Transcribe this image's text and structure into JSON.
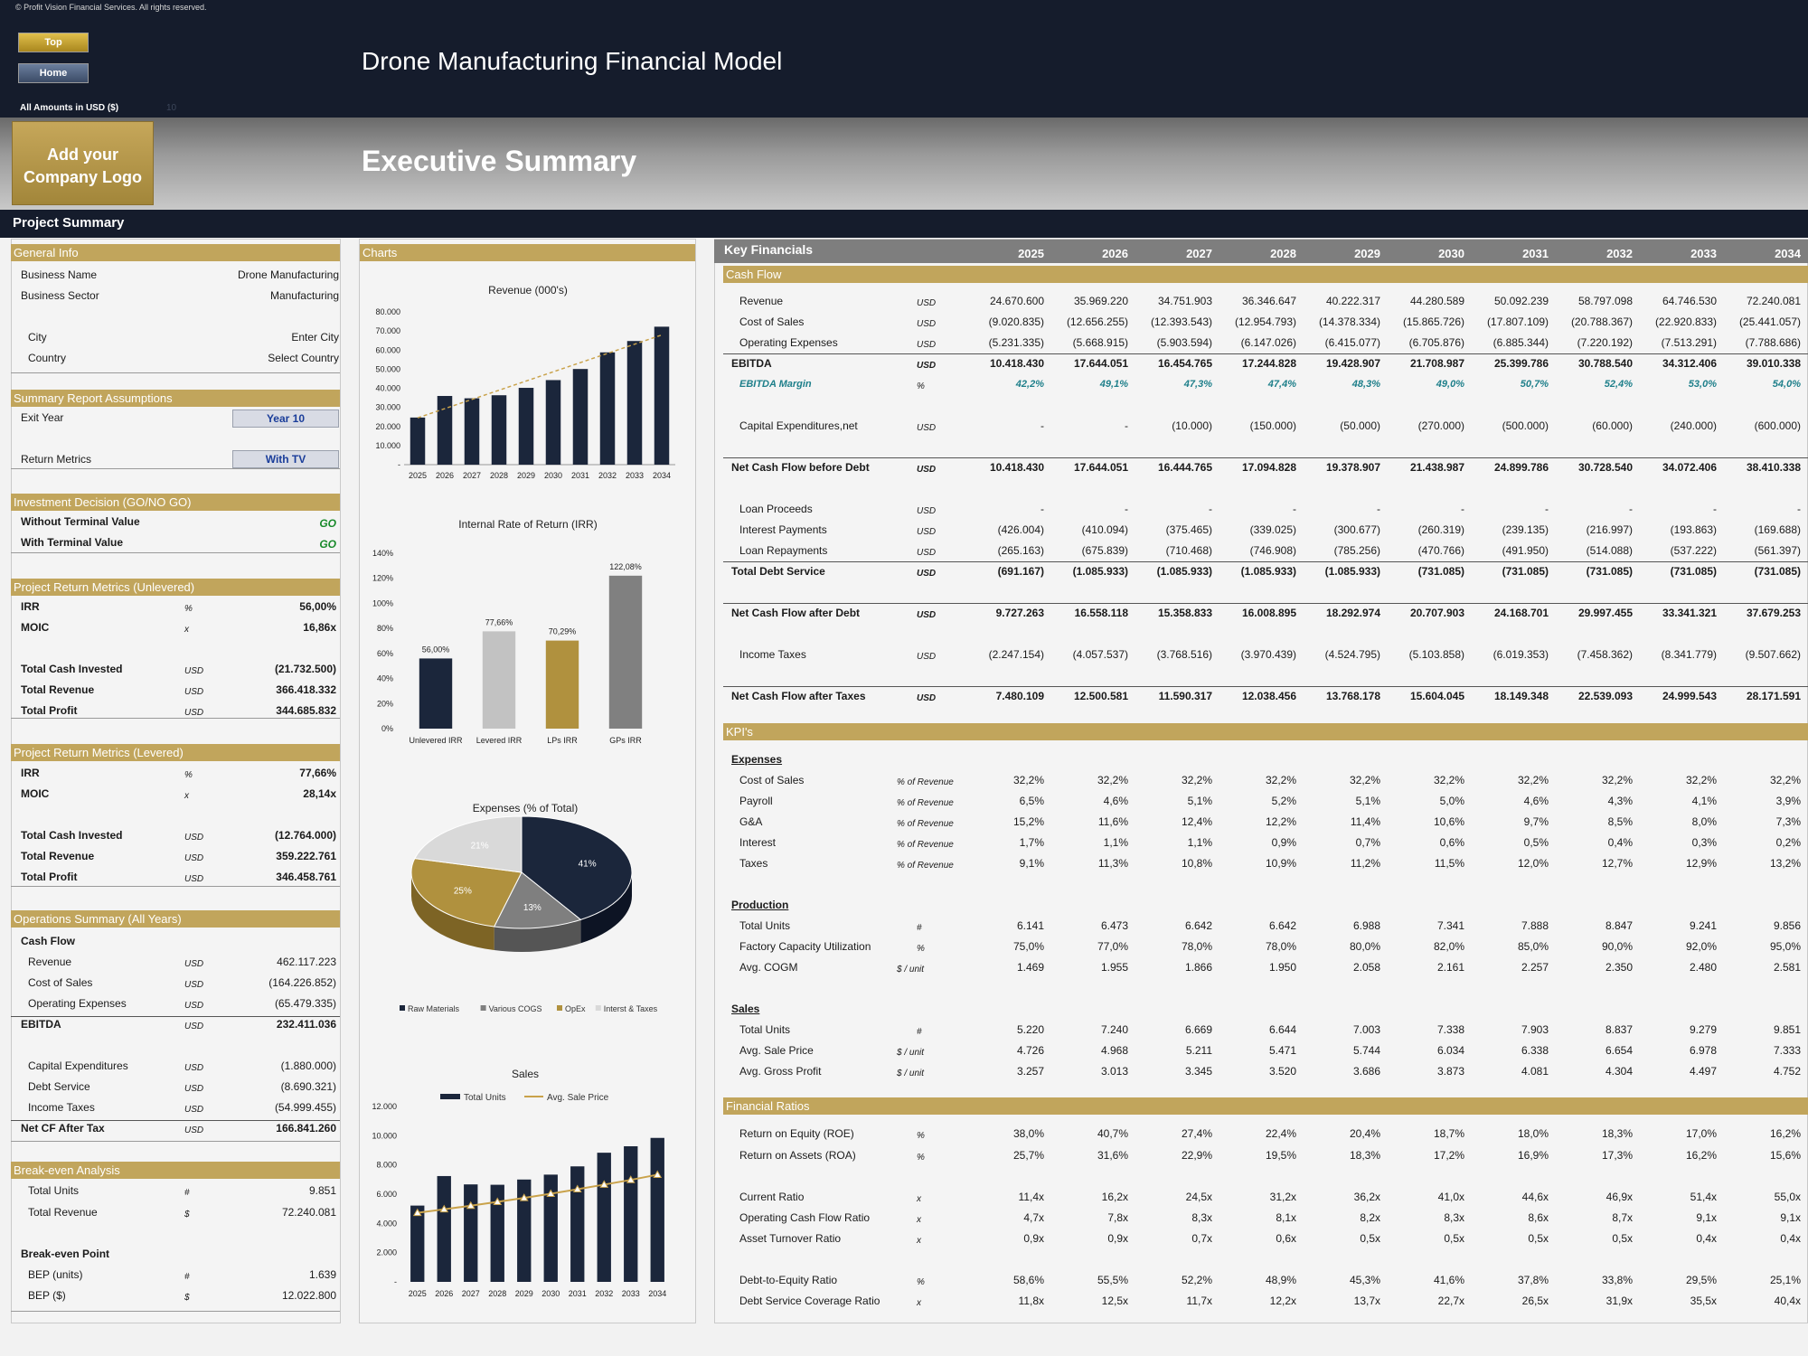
{
  "copyright": "© Profit Vision Financial Services. All rights reserved.",
  "nav": {
    "top": "Top",
    "home": "Home"
  },
  "app_title": "Drone Manufacturing Financial Model",
  "amounts_label": "All Amounts in  USD ($)",
  "amounts_tag": "10",
  "logo_text": "Add your Company Logo",
  "exec_title": "Executive Summary",
  "project_summary": "Project Summary",
  "general_info": {
    "title": "General Info",
    "rows": [
      {
        "label": "Business Name",
        "value": "Drone Manufacturing"
      },
      {
        "label": "Business Sector",
        "value": "Manufacturing"
      },
      {
        "label": "City",
        "value": "Enter City"
      },
      {
        "label": "Country",
        "value": "Select Country"
      }
    ]
  },
  "assumptions": {
    "title": "Summary  Report Assumptions",
    "exit_year_label": "Exit Year",
    "exit_year_value": "Year 10",
    "return_metrics_label": "Return Metrics",
    "return_metrics_value": "With TV"
  },
  "investment": {
    "title": "Investment Decision (GO/NO GO)",
    "rows": [
      {
        "label": "Without Terminal Value",
        "value": "GO"
      },
      {
        "label": "With Terminal Value",
        "value": "GO"
      }
    ]
  },
  "unlevered": {
    "title": "Project Return Metrics (Unlevered)",
    "rows": [
      {
        "label": "IRR",
        "unit": "%",
        "value": "56,00%"
      },
      {
        "label": "MOIC",
        "unit": "x",
        "value": "16,86x"
      },
      {
        "label": "Total Cash Invested",
        "unit": "USD",
        "value": "(21.732.500)"
      },
      {
        "label": "Total Revenue",
        "unit": "USD",
        "value": "366.418.332"
      },
      {
        "label": "Total Profit",
        "unit": "USD",
        "value": "344.685.832"
      }
    ]
  },
  "levered": {
    "title": "Project Return Metrics (Levered)",
    "rows": [
      {
        "label": "IRR",
        "unit": "%",
        "value": "77,66%"
      },
      {
        "label": "MOIC",
        "unit": "x",
        "value": "28,14x"
      },
      {
        "label": "Total Cash Invested",
        "unit": "USD",
        "value": "(12.764.000)"
      },
      {
        "label": "Total Revenue",
        "unit": "USD",
        "value": "359.222.761"
      },
      {
        "label": "Total Profit",
        "unit": "USD",
        "value": "346.458.761"
      }
    ]
  },
  "operations": {
    "title": "Operations Summary (All Years)",
    "subtitle": "Cash Flow",
    "rows": [
      {
        "label": "Revenue",
        "unit": "USD",
        "value": "462.117.223"
      },
      {
        "label": "Cost of Sales",
        "unit": "USD",
        "value": "(164.226.852)"
      },
      {
        "label": "Operating Expenses",
        "unit": "USD",
        "value": "(65.479.335)"
      },
      {
        "label": "EBITDA",
        "unit": "USD",
        "value": "232.411.036"
      },
      {
        "label": "Capital Expenditures",
        "unit": "USD",
        "value": "(1.880.000)"
      },
      {
        "label": "Debt Service",
        "unit": "USD",
        "value": "(8.690.321)"
      },
      {
        "label": "Income Taxes",
        "unit": "USD",
        "value": "(54.999.455)"
      },
      {
        "label": "Net CF After Tax",
        "unit": "USD",
        "value": "166.841.260"
      }
    ]
  },
  "breakeven": {
    "title": "Break-even Analysis",
    "rows": [
      {
        "label": "Total Units",
        "unit": "#",
        "value": "9.851"
      },
      {
        "label": "Total Revenue",
        "unit": "$",
        "value": "72.240.081"
      }
    ],
    "point_title": "Break-even Point",
    "point_rows": [
      {
        "label": "BEP (units)",
        "unit": "#",
        "value": "1.639"
      },
      {
        "label": "BEP ($)",
        "unit": "$",
        "value": "12.022.800"
      }
    ]
  },
  "charts_title": "Charts",
  "chart_data": [
    {
      "type": "bar",
      "title": "Revenue (000's)",
      "categories": [
        "2025",
        "2026",
        "2027",
        "2028",
        "2029",
        "2030",
        "2031",
        "2032",
        "2033",
        "2034"
      ],
      "values": [
        24671,
        35969,
        34752,
        36347,
        40222,
        44281,
        50092,
        58797,
        64747,
        72240
      ],
      "ylim": [
        0,
        80000
      ],
      "yticks": [
        "-",
        "10.000",
        "20.000",
        "30.000",
        "40.000",
        "50.000",
        "60.000",
        "70.000",
        "80.000"
      ],
      "trendline": true,
      "colors": {
        "bar": "#1b263b",
        "trend": "#c9a24a"
      }
    },
    {
      "type": "bar",
      "title": "Internal Rate of Return (IRR)",
      "categories": [
        "Unlevered IRR",
        "Levered IRR",
        "LPs IRR",
        "GPs IRR"
      ],
      "values": [
        56.0,
        77.66,
        70.29,
        122.08
      ],
      "labels": [
        "56,00%",
        "77,66%",
        "70,29%",
        "122,08%"
      ],
      "ylim": [
        0,
        140
      ],
      "yticks": [
        "0%",
        "20%",
        "40%",
        "60%",
        "80%",
        "100%",
        "120%",
        "140%"
      ],
      "colors": [
        "#1b263b",
        "#c2c2c2",
        "#b0913e",
        "#808080"
      ]
    },
    {
      "type": "pie",
      "title": "Expenses (% of Total)",
      "slices": [
        {
          "name": "Raw Materials",
          "value": 41,
          "label": "41%",
          "color": "#1b263b"
        },
        {
          "name": "Various COGS",
          "value": 13,
          "label": "13%",
          "color": "#7f7f7f"
        },
        {
          "name": "OpEx",
          "value": 25,
          "label": "25%",
          "color": "#b0913e"
        },
        {
          "name": "Interst & Taxes",
          "value": 21,
          "label": "21%",
          "color": "#d9d9d9"
        }
      ]
    },
    {
      "type": "bar",
      "title": "Sales",
      "categories": [
        "2025",
        "2026",
        "2027",
        "2028",
        "2029",
        "2030",
        "2031",
        "2032",
        "2033",
        "2034"
      ],
      "series": [
        {
          "name": "Total Units",
          "values": [
            5220,
            7240,
            6669,
            6644,
            7003,
            7338,
            7903,
            8837,
            9279,
            9851
          ]
        },
        {
          "name": "Avg. Sale Price",
          "values": [
            4726,
            4968,
            5211,
            5471,
            5744,
            6034,
            6338,
            6654,
            6978,
            7333
          ]
        }
      ],
      "ylim": [
        0,
        12000
      ],
      "yticks": [
        "-",
        "2.000",
        "4.000",
        "6.000",
        "8.000",
        "10.000",
        "12.000"
      ],
      "colors": {
        "bar": "#1b263b",
        "line": "#c9a24a"
      }
    }
  ],
  "key_financials": {
    "title": "Key Financials",
    "years": [
      "2025",
      "2026",
      "2027",
      "2028",
      "2029",
      "2030",
      "2031",
      "2032",
      "2033",
      "2034"
    ],
    "cashflow_title": "Cash Flow",
    "kpi_title": "KPI's",
    "ratios_title": "Financial Ratios",
    "rows": [
      {
        "label": "Revenue",
        "unit": "USD",
        "values": [
          "24.670.600",
          "35.969.220",
          "34.751.903",
          "36.346.647",
          "40.222.317",
          "44.280.589",
          "50.092.239",
          "58.797.098",
          "64.746.530",
          "72.240.081"
        ],
        "y": 326
      },
      {
        "label": "Cost of Sales",
        "unit": "USD",
        "values": [
          "(9.020.835)",
          "(12.656.255)",
          "(12.393.543)",
          "(12.954.793)",
          "(14.378.334)",
          "(15.865.726)",
          "(17.807.109)",
          "(20.788.367)",
          "(22.920.833)",
          "(25.441.057)"
        ],
        "y": 349
      },
      {
        "label": "Operating Expenses",
        "unit": "USD",
        "values": [
          "(5.231.335)",
          "(5.668.915)",
          "(5.903.594)",
          "(6.147.026)",
          "(6.415.077)",
          "(6.705.876)",
          "(6.885.344)",
          "(7.220.192)",
          "(7.513.291)",
          "(7.788.686)"
        ],
        "y": 372
      },
      {
        "label": "EBITDA",
        "unit": "USD",
        "values": [
          "10.418.430",
          "17.644.051",
          "16.454.765",
          "17.244.828",
          "19.428.907",
          "21.708.987",
          "25.399.786",
          "30.788.540",
          "34.312.406",
          "39.010.338"
        ],
        "y": 395,
        "style": "bold"
      },
      {
        "label": "EBITDA Margin",
        "unit": "%",
        "values": [
          "42,2%",
          "49,1%",
          "47,3%",
          "47,4%",
          "48,3%",
          "49,0%",
          "50,7%",
          "52,4%",
          "53,0%",
          "54,0%"
        ],
        "y": 418,
        "style": "teal"
      },
      {
        "label": "Capital Expenditures,net",
        "unit": "USD",
        "values": [
          "-",
          "-",
          "(10.000)",
          "(150.000)",
          "(50.000)",
          "(270.000)",
          "(500.000)",
          "(60.000)",
          "(240.000)",
          "(600.000)"
        ],
        "y": 464
      },
      {
        "label": "Net Cash Flow before Debt",
        "unit": "USD",
        "values": [
          "10.418.430",
          "17.644.051",
          "16.444.765",
          "17.094.828",
          "19.378.907",
          "21.438.987",
          "24.899.786",
          "30.728.540",
          "34.072.406",
          "38.410.338"
        ],
        "y": 510,
        "style": "bold"
      },
      {
        "label": "Loan Proceeds",
        "unit": "USD",
        "values": [
          "-",
          "-",
          "-",
          "-",
          "-",
          "-",
          "-",
          "-",
          "-",
          "-"
        ],
        "y": 556
      },
      {
        "label": "Interest Payments",
        "unit": "USD",
        "values": [
          "(426.004)",
          "(410.094)",
          "(375.465)",
          "(339.025)",
          "(300.677)",
          "(260.319)",
          "(239.135)",
          "(216.997)",
          "(193.863)",
          "(169.688)"
        ],
        "y": 579
      },
      {
        "label": "Loan Repayments",
        "unit": "USD",
        "values": [
          "(265.163)",
          "(675.839)",
          "(710.468)",
          "(746.908)",
          "(785.256)",
          "(470.766)",
          "(491.950)",
          "(514.088)",
          "(537.222)",
          "(561.397)"
        ],
        "y": 602
      },
      {
        "label": "Total Debt Service",
        "unit": "USD",
        "values": [
          "(691.167)",
          "(1.085.933)",
          "(1.085.933)",
          "(1.085.933)",
          "(1.085.933)",
          "(731.085)",
          "(731.085)",
          "(731.085)",
          "(731.085)",
          "(731.085)"
        ],
        "y": 625,
        "style": "bold"
      },
      {
        "label": "Net Cash Flow after Debt",
        "unit": "USD",
        "values": [
          "9.727.263",
          "16.558.118",
          "15.358.833",
          "16.008.895",
          "18.292.974",
          "20.707.903",
          "24.168.701",
          "29.997.455",
          "33.341.321",
          "37.679.253"
        ],
        "y": 671,
        "style": "bold"
      },
      {
        "label": "Income Taxes",
        "unit": "USD",
        "values": [
          "(2.247.154)",
          "(4.057.537)",
          "(3.768.516)",
          "(3.970.439)",
          "(4.524.795)",
          "(5.103.858)",
          "(6.019.353)",
          "(7.458.362)",
          "(8.341.779)",
          "(9.507.662)"
        ],
        "y": 717
      },
      {
        "label": "Net Cash Flow after Taxes",
        "unit": "USD",
        "values": [
          "7.480.109",
          "12.500.581",
          "11.590.317",
          "12.038.456",
          "13.768.178",
          "15.604.045",
          "18.149.348",
          "22.539.093",
          "24.999.543",
          "28.171.591"
        ],
        "y": 763,
        "style": "bold"
      },
      {
        "label": "Cost of Sales",
        "unit": "% of Revenue",
        "values": [
          "32,2%",
          "32,2%",
          "32,2%",
          "32,2%",
          "32,2%",
          "32,2%",
          "32,2%",
          "32,2%",
          "32,2%",
          "32,2%"
        ],
        "y": 856
      },
      {
        "label": "Payroll",
        "unit": "% of Revenue",
        "values": [
          "6,5%",
          "4,6%",
          "5,1%",
          "5,2%",
          "5,1%",
          "5,0%",
          "4,6%",
          "4,3%",
          "4,1%",
          "3,9%"
        ],
        "y": 879
      },
      {
        "label": "G&A",
        "unit": "% of Revenue",
        "values": [
          "15,2%",
          "11,6%",
          "12,4%",
          "12,2%",
          "11,4%",
          "10,6%",
          "9,7%",
          "8,5%",
          "8,0%",
          "7,3%"
        ],
        "y": 902
      },
      {
        "label": "Interest",
        "unit": "% of Revenue",
        "values": [
          "1,7%",
          "1,1%",
          "1,1%",
          "0,9%",
          "0,7%",
          "0,6%",
          "0,5%",
          "0,4%",
          "0,3%",
          "0,2%"
        ],
        "y": 925
      },
      {
        "label": "Taxes",
        "unit": "% of Revenue",
        "values": [
          "9,1%",
          "11,3%",
          "10,8%",
          "10,9%",
          "11,2%",
          "11,5%",
          "12,0%",
          "12,7%",
          "12,9%",
          "13,2%"
        ],
        "y": 948
      },
      {
        "label": "Total Units",
        "unit": "#",
        "values": [
          "6.141",
          "6.473",
          "6.642",
          "6.642",
          "6.988",
          "7.341",
          "7.888",
          "8.847",
          "9.241",
          "9.856"
        ],
        "y": 1017
      },
      {
        "label": "Factory Capacity Utilization",
        "unit": "%",
        "values": [
          "75,0%",
          "77,0%",
          "78,0%",
          "78,0%",
          "80,0%",
          "82,0%",
          "85,0%",
          "90,0%",
          "92,0%",
          "95,0%"
        ],
        "y": 1040
      },
      {
        "label": "Avg. COGM",
        "unit": "$ / unit",
        "values": [
          "1.469",
          "1.955",
          "1.866",
          "1.950",
          "2.058",
          "2.161",
          "2.257",
          "2.350",
          "2.480",
          "2.581"
        ],
        "y": 1063
      },
      {
        "label": "Total Units",
        "unit": "#",
        "values": [
          "5.220",
          "7.240",
          "6.669",
          "6.644",
          "7.003",
          "7.338",
          "7.903",
          "8.837",
          "9.279",
          "9.851"
        ],
        "y": 1132
      },
      {
        "label": "Avg. Sale Price",
        "unit": "$ / unit",
        "values": [
          "4.726",
          "4.968",
          "5.211",
          "5.471",
          "5.744",
          "6.034",
          "6.338",
          "6.654",
          "6.978",
          "7.333"
        ],
        "y": 1155
      },
      {
        "label": "Avg. Gross Profit",
        "unit": "$ / unit",
        "values": [
          "3.257",
          "3.013",
          "3.345",
          "3.520",
          "3.686",
          "3.873",
          "4.081",
          "4.304",
          "4.497",
          "4.752"
        ],
        "y": 1178
      },
      {
        "label": "Return on Equity (ROE)",
        "unit": "%",
        "values": [
          "38,0%",
          "40,7%",
          "27,4%",
          "22,4%",
          "20,4%",
          "18,7%",
          "18,0%",
          "18,3%",
          "17,0%",
          "16,2%"
        ],
        "y": 1247
      },
      {
        "label": "Return on Assets (ROA)",
        "unit": "%",
        "values": [
          "25,7%",
          "31,6%",
          "22,9%",
          "19,5%",
          "18,3%",
          "17,2%",
          "16,9%",
          "17,3%",
          "16,2%",
          "15,6%"
        ],
        "y": 1271
      },
      {
        "label": "Current Ratio",
        "unit": "x",
        "values": [
          "11,4x",
          "16,2x",
          "24,5x",
          "31,2x",
          "36,2x",
          "41,0x",
          "44,6x",
          "46,9x",
          "51,4x",
          "55,0x"
        ],
        "y": 1317
      },
      {
        "label": "Operating Cash Flow Ratio",
        "unit": "x",
        "values": [
          "4,7x",
          "7,8x",
          "8,3x",
          "8,1x",
          "8,2x",
          "8,3x",
          "8,6x",
          "8,7x",
          "9,1x",
          "9,1x"
        ],
        "y": 1340
      },
      {
        "label": "Asset Turnover Ratio",
        "unit": "x",
        "values": [
          "0,9x",
          "0,9x",
          "0,7x",
          "0,6x",
          "0,5x",
          "0,5x",
          "0,5x",
          "0,5x",
          "0,4x",
          "0,4x"
        ],
        "y": 1363
      },
      {
        "label": "Debt-to-Equity Ratio",
        "unit": "%",
        "values": [
          "58,6%",
          "55,5%",
          "52,2%",
          "48,9%",
          "45,3%",
          "41,6%",
          "37,8%",
          "33,8%",
          "29,5%",
          "25,1%"
        ],
        "y": 1409
      },
      {
        "label": "Debt Service Coverage Ratio",
        "unit": "x",
        "values": [
          "11,8x",
          "12,5x",
          "11,7x",
          "12,2x",
          "13,7x",
          "22,7x",
          "26,5x",
          "31,9x",
          "35,5x",
          "40,4x"
        ],
        "y": 1432
      }
    ],
    "subheaders": [
      {
        "label": "Expenses",
        "y": 833
      },
      {
        "label": "Production",
        "y": 994
      },
      {
        "label": "Sales",
        "y": 1109
      }
    ]
  }
}
